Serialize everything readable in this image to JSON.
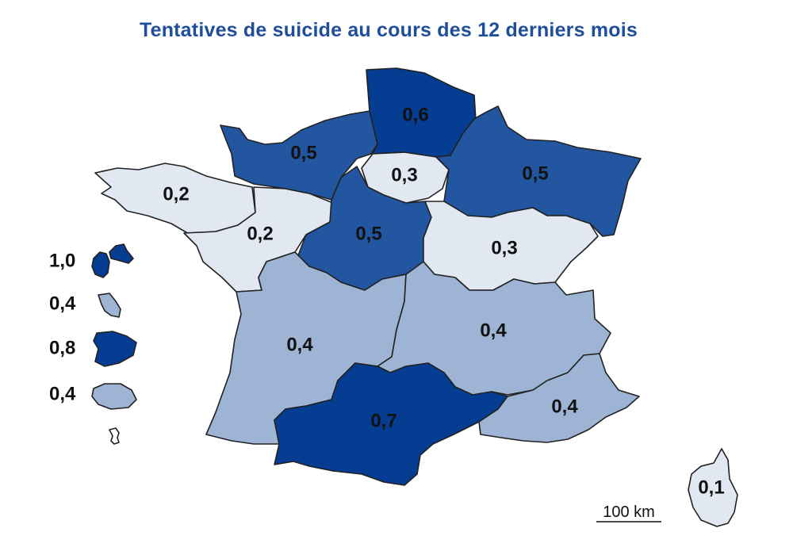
{
  "title": "Tentatives de suicide au cours des 12 derniers mois",
  "colors": {
    "very_light": "#e1e8f2",
    "light": "#9db4d5",
    "medium": "#2356a0",
    "dark": "#043d91"
  },
  "regions": [
    {
      "id": "bretagne",
      "value": "0,2",
      "shade": "very_light"
    },
    {
      "id": "normandie",
      "value": "0,5",
      "shade": "medium"
    },
    {
      "id": "hauts-de-france",
      "value": "0,6",
      "shade": "dark"
    },
    {
      "id": "ile-de-france",
      "value": "0,3",
      "shade": "very_light"
    },
    {
      "id": "grand-est",
      "value": "0,5",
      "shade": "medium"
    },
    {
      "id": "pays-de-la-loire",
      "value": "0,2",
      "shade": "very_light"
    },
    {
      "id": "centre-val-de-loire",
      "value": "0,5",
      "shade": "medium"
    },
    {
      "id": "bourgogne-franche-comte",
      "value": "0,3",
      "shade": "very_light"
    },
    {
      "id": "nouvelle-aquitaine",
      "value": "0,4",
      "shade": "light"
    },
    {
      "id": "auvergne-rhone-alpes",
      "value": "0,4",
      "shade": "light"
    },
    {
      "id": "occitanie",
      "value": "0,7",
      "shade": "dark"
    },
    {
      "id": "provence-alpes-cote-dazur",
      "value": "0,4",
      "shade": "light"
    },
    {
      "id": "corse",
      "value": "0,1",
      "shade": "very_light"
    }
  ],
  "overseas": [
    {
      "id": "guadeloupe",
      "value": "1,0",
      "shade": "dark"
    },
    {
      "id": "martinique",
      "value": "0,4",
      "shade": "light"
    },
    {
      "id": "guyane",
      "value": "0,8",
      "shade": "dark"
    },
    {
      "id": "la-reunion",
      "value": "0,4",
      "shade": "light"
    },
    {
      "id": "mayotte",
      "value": "",
      "shade": "none"
    }
  ],
  "scale_bar": {
    "label": "100 km"
  }
}
